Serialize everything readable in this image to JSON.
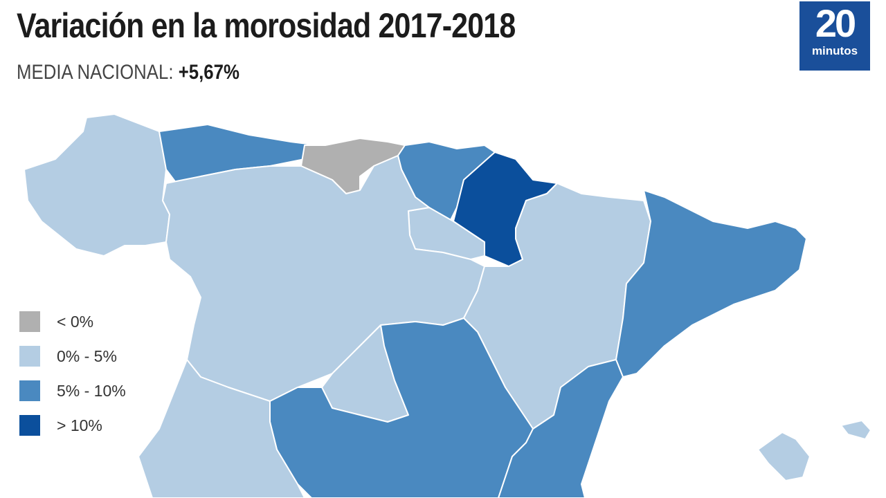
{
  "title": "Variación en la morosidad 2017-2018",
  "subtitle": {
    "label": "MEDIA NACIONAL:",
    "value": "+5,67%"
  },
  "logo": {
    "number": "20",
    "word": "minutos"
  },
  "colors": {
    "neg": "#b0b0b0",
    "low": "#b4cde3",
    "mid": "#4a89c0",
    "high": "#0b4f9c",
    "logo_bg": "#1a4f9a"
  },
  "legend": [
    {
      "label": "< 0%",
      "class": "neg"
    },
    {
      "label": "0% - 5%",
      "class": "low"
    },
    {
      "label": "5% - 10%",
      "class": "mid"
    },
    {
      "label": "> 10%",
      "class": "high"
    }
  ],
  "regions": [
    {
      "name": "Galicia",
      "class": "low"
    },
    {
      "name": "Asturias",
      "class": "mid"
    },
    {
      "name": "Cantabria",
      "class": "neg"
    },
    {
      "name": "País Vasco",
      "class": "mid"
    },
    {
      "name": "Navarra",
      "class": "high"
    },
    {
      "name": "La Rioja",
      "class": "low"
    },
    {
      "name": "Castilla y León",
      "class": "low"
    },
    {
      "name": "Aragón",
      "class": "low"
    },
    {
      "name": "Cataluña",
      "class": "mid"
    },
    {
      "name": "Madrid",
      "class": "low"
    },
    {
      "name": "Castilla-La Mancha",
      "class": "mid"
    },
    {
      "name": "Comunidad Valenciana",
      "class": "mid"
    },
    {
      "name": "Extremadura",
      "class": "low"
    },
    {
      "name": "Baleares",
      "class": "low"
    }
  ]
}
